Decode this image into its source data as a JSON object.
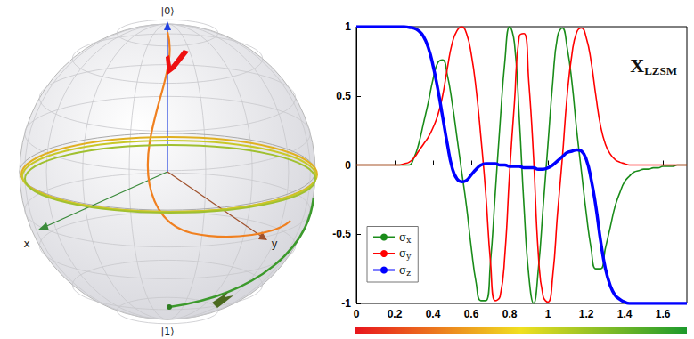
{
  "bloch_sphere": {
    "north_label": "|0⟩",
    "south_label": "|1⟩",
    "x_label": "x",
    "y_label": "y"
  },
  "chart_data": {
    "type": "line",
    "annotation": {
      "text": "X",
      "subscript": "LZSM"
    },
    "x": [
      0,
      0.025,
      0.05,
      0.075,
      0.1,
      0.125,
      0.15,
      0.175,
      0.2,
      0.225,
      0.25,
      0.275,
      0.3,
      0.325,
      0.35,
      0.375,
      0.4,
      0.425,
      0.45,
      0.475,
      0.5,
      0.525,
      0.55,
      0.575,
      0.6,
      0.625,
      0.65,
      0.675,
      0.7,
      0.725,
      0.75,
      0.775,
      0.8,
      0.825,
      0.85,
      0.875,
      0.9,
      0.925,
      0.95,
      0.975,
      1.0,
      1.025,
      1.05,
      1.075,
      1.1,
      1.125,
      1.15,
      1.175,
      1.2,
      1.225,
      1.25,
      1.275,
      1.3,
      1.325,
      1.35,
      1.375,
      1.4,
      1.425,
      1.45,
      1.475,
      1.5,
      1.525,
      1.55,
      1.575,
      1.6,
      1.625,
      1.65,
      1.675,
      1.7,
      1.725
    ],
    "xlim": [
      0,
      1.725
    ],
    "xticks": [
      0,
      0.2,
      0.4,
      0.6,
      0.8,
      1,
      1.2,
      1.4,
      1.6
    ],
    "ylim": [
      -1,
      1
    ],
    "yticks": [
      -1,
      -0.5,
      0,
      0.5,
      1
    ],
    "grid": false,
    "legend": "bottom-left",
    "series": [
      {
        "name": "σx",
        "color": "#1a8c1a",
        "line_style": "solid",
        "values": [
          0,
          0,
          0,
          0,
          0,
          0,
          0,
          0,
          0,
          0,
          0,
          0,
          0.05,
          0.15,
          0.3,
          0.45,
          0.62,
          0.74,
          0.76,
          0.65,
          0.45,
          0.2,
          -0.05,
          -0.3,
          -0.6,
          -0.85,
          -0.98,
          -0.98,
          -0.7,
          -0.2,
          0.3,
          0.75,
          1.0,
          0.88,
          0.35,
          -0.3,
          -0.8,
          -1.0,
          -0.75,
          -0.3,
          0.15,
          0.6,
          0.93,
          0.99,
          0.85,
          0.6,
          0.25,
          -0.05,
          -0.35,
          -0.6,
          -0.75,
          -0.75,
          -0.6,
          -0.45,
          -0.3,
          -0.2,
          -0.12,
          -0.08,
          -0.05,
          -0.04,
          -0.03,
          -0.03,
          -0.02,
          -0.02,
          -0.01,
          -0.01,
          -0.01,
          0,
          0,
          0
        ]
      },
      {
        "name": "σy",
        "color": "#ff0000",
        "line_style": "solid",
        "values": [
          0,
          0,
          0,
          0,
          0,
          0,
          0,
          0,
          0,
          0,
          0.01,
          0.02,
          0.05,
          0.1,
          0.15,
          0.2,
          0.27,
          0.36,
          0.5,
          0.7,
          0.88,
          0.97,
          1.0,
          0.95,
          0.8,
          0.55,
          0.2,
          -0.2,
          -0.7,
          -0.98,
          -0.95,
          -0.65,
          -0.05,
          0.45,
          0.93,
          0.95,
          0.6,
          0.05,
          -0.65,
          -0.95,
          -0.99,
          -0.8,
          -0.35,
          0.05,
          0.5,
          0.8,
          0.96,
          0.99,
          0.92,
          0.75,
          0.5,
          0.28,
          0.15,
          0.08,
          0.04,
          0.02,
          0.01,
          0,
          0,
          0,
          0,
          0,
          0,
          0,
          0,
          0,
          0,
          0,
          0,
          0
        ]
      },
      {
        "name": "σz",
        "color": "#0000ff",
        "line_style": "thick",
        "values": [
          1,
          1,
          1,
          1,
          1,
          1,
          1,
          1,
          1,
          1,
          1,
          0.995,
          0.99,
          0.97,
          0.93,
          0.85,
          0.72,
          0.55,
          0.35,
          0.15,
          -0.02,
          -0.1,
          -0.12,
          -0.11,
          -0.07,
          -0.03,
          0,
          0.01,
          0.01,
          0.01,
          0,
          0,
          -0.01,
          -0.01,
          -0.01,
          -0.02,
          -0.02,
          -0.02,
          -0.03,
          -0.03,
          -0.02,
          0,
          0.03,
          0.06,
          0.09,
          0.1,
          0.11,
          0.1,
          0.04,
          -0.1,
          -0.3,
          -0.55,
          -0.75,
          -0.87,
          -0.94,
          -0.97,
          -0.99,
          -1,
          -1,
          -1,
          -1,
          -1,
          -1,
          -1,
          -1,
          -1,
          -1,
          -1,
          -1,
          -1
        ]
      }
    ]
  }
}
